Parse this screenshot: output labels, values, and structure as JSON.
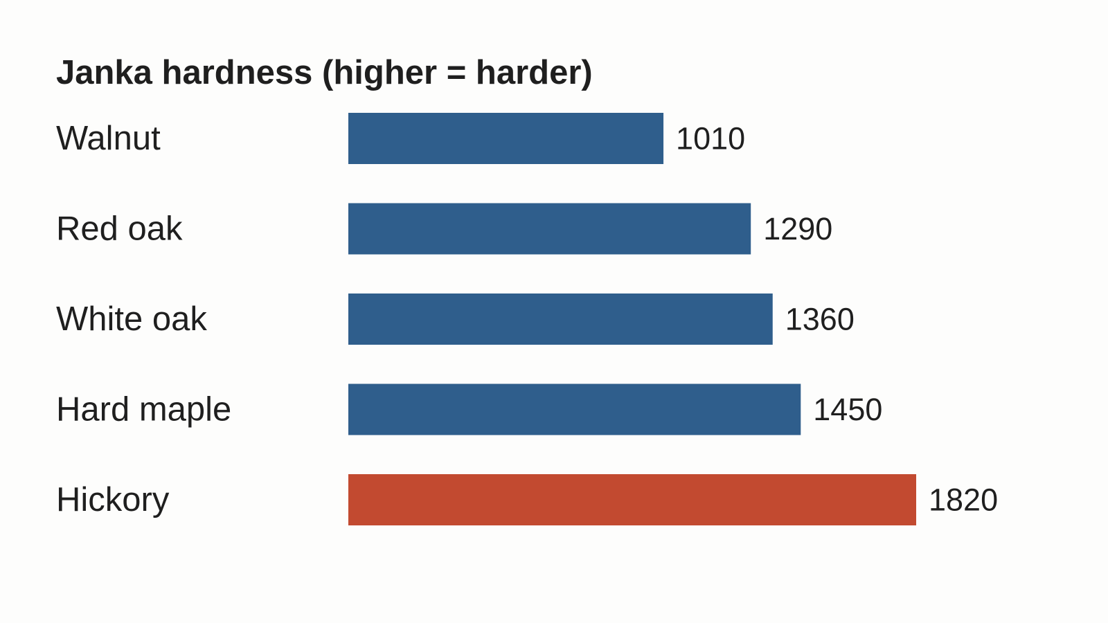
{
  "chart_data": {
    "type": "bar",
    "orientation": "horizontal",
    "title": "Janka hardness (higher = harder)",
    "xlabel": "",
    "ylabel": "",
    "categories": [
      "Walnut",
      "Red oak",
      "White oak",
      "Hard maple",
      "Hickory"
    ],
    "values": [
      1010,
      1290,
      1360,
      1450,
      1820
    ],
    "highlight": [
      false,
      false,
      false,
      false,
      true
    ],
    "xlim": [
      0,
      1820
    ],
    "grid": false,
    "legend": "none",
    "colors": {
      "default": "#2f5e8c",
      "highlight": "#c24a30"
    }
  }
}
